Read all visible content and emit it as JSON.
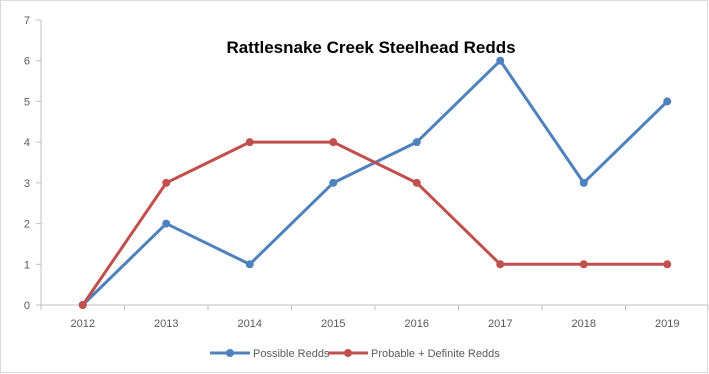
{
  "chart_data": {
    "type": "line",
    "title": "Rattlesnake Creek Steelhead Redds",
    "xlabel": "",
    "ylabel": "",
    "categories": [
      "2012",
      "2013",
      "2014",
      "2015",
      "2016",
      "2017",
      "2018",
      "2019"
    ],
    "y_ticks": [
      "0",
      "1",
      "2",
      "3",
      "4",
      "5",
      "6",
      "7"
    ],
    "ylim": [
      0,
      7
    ],
    "grid": false,
    "legend_position": "bottom",
    "series": [
      {
        "name": "Possible Redds",
        "color": "#4f81bd",
        "values": [
          0,
          2,
          1,
          3,
          4,
          6,
          3,
          5
        ]
      },
      {
        "name": "Probable + Definite Redds",
        "color": "#c0504d",
        "values": [
          0,
          3,
          4,
          4,
          3,
          1,
          1,
          1
        ]
      }
    ]
  }
}
